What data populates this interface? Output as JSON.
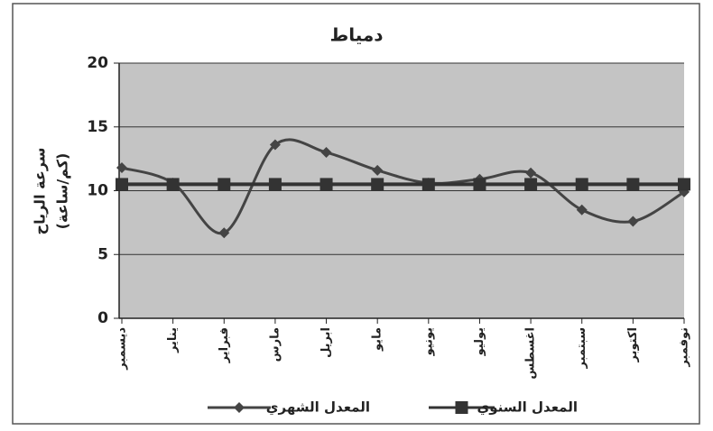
{
  "chart_data": {
    "type": "line",
    "title": "دمياط",
    "ylabel": [
      "سرعة الرياح",
      "(كم/ساعة)"
    ],
    "categories": [
      "ديسمبر",
      "يناير",
      "فبراير",
      "مارس",
      "ابريل",
      "مايو",
      "يونيو",
      "يوليو",
      "اغسطس",
      "سبتمبر",
      "اكتوبر",
      "نوفمبر"
    ],
    "series": [
      {
        "name": "المعدل الشهري",
        "color": "#444444",
        "marker": "diamond",
        "smooth": true,
        "values": [
          11.8,
          10.6,
          6.7,
          13.6,
          13.0,
          11.6,
          10.6,
          10.9,
          11.4,
          8.5,
          7.6,
          9.9
        ]
      },
      {
        "name": "المعدل السنوي",
        "color": "#333333",
        "marker": "square",
        "smooth": false,
        "values": [
          10.5,
          10.5,
          10.5,
          10.5,
          10.5,
          10.5,
          10.5,
          10.5,
          10.5,
          10.5,
          10.5,
          10.5
        ]
      }
    ],
    "ylim": [
      0,
      20
    ],
    "yticks": [
      0,
      5,
      10,
      15,
      20
    ],
    "grid": true,
    "legend": "bottom"
  }
}
